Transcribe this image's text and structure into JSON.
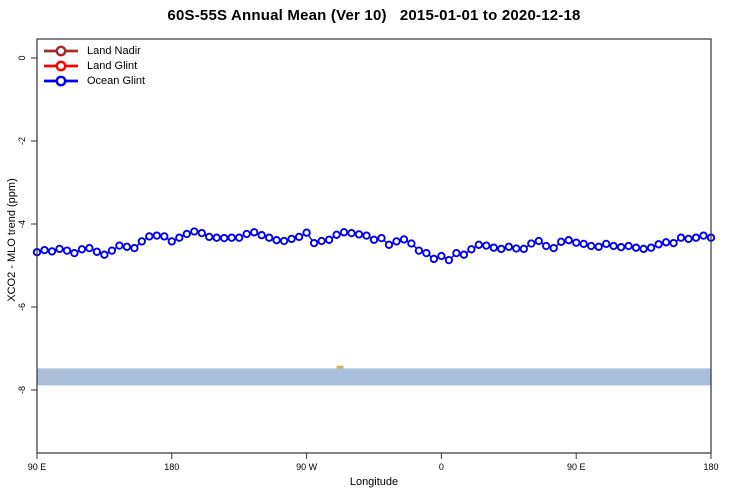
{
  "chart_data": {
    "type": "line",
    "title": "60S-55S Annual Mean (Ver 10)   2015-01-01 to 2020-12-18",
    "xlabel": "Longitude",
    "ylabel": "XCO2 - MLO trend (ppm)",
    "grid": false,
    "legend_position": "top-left",
    "x_axis": {
      "range": [
        90,
        540
      ],
      "ticks": [
        {
          "lon": 90,
          "label": "90 E"
        },
        {
          "lon": 180,
          "label": "180"
        },
        {
          "lon": 270,
          "label": "90 W"
        },
        {
          "lon": 360,
          "label": "0"
        },
        {
          "lon": 450,
          "label": "90 E"
        },
        {
          "lon": 540,
          "label": "180"
        }
      ]
    },
    "y_axis": {
      "range": [
        -9.5,
        0.5
      ],
      "ticks": [
        {
          "value": 0,
          "label": "0"
        },
        {
          "value": -2,
          "label": "-2"
        },
        {
          "value": -4,
          "label": "-4"
        },
        {
          "value": -6,
          "label": "-6"
        },
        {
          "value": -8,
          "label": "-8"
        }
      ]
    },
    "band": {
      "from": -7.89,
      "to": -7.48,
      "color": "#A9BED9"
    },
    "stray_mark": {
      "lon": 292,
      "value": -7.45,
      "color": "#D2B45A"
    },
    "series": [
      {
        "name": "Land Nadir",
        "color": "#A52A2A",
        "marker": "open-circle",
        "x": [],
        "values": []
      },
      {
        "name": "Land Glint",
        "color": "#FF0000",
        "marker": "open-circle",
        "x": [],
        "values": []
      },
      {
        "name": "Ocean Glint",
        "color": "#0000EE",
        "marker": "open-circle",
        "x": [
          90,
          95,
          100,
          105,
          110,
          115,
          120,
          125,
          130,
          135,
          140,
          145,
          150,
          155,
          160,
          165,
          170,
          175,
          180,
          185,
          190,
          195,
          200,
          205,
          210,
          215,
          220,
          225,
          230,
          235,
          240,
          245,
          250,
          255,
          260,
          265,
          270,
          275,
          280,
          285,
          290,
          295,
          300,
          305,
          310,
          315,
          320,
          325,
          330,
          335,
          340,
          345,
          350,
          355,
          360,
          365,
          370,
          375,
          380,
          385,
          390,
          395,
          400,
          405,
          410,
          415,
          420,
          425,
          430,
          435,
          440,
          445,
          450,
          455,
          460,
          465,
          470,
          475,
          480,
          485,
          490,
          495,
          500,
          505,
          510,
          515,
          520,
          525,
          530,
          535,
          540
        ],
        "values": [
          -4.68,
          -4.63,
          -4.66,
          -4.6,
          -4.64,
          -4.7,
          -4.61,
          -4.58,
          -4.67,
          -4.74,
          -4.64,
          -4.52,
          -4.55,
          -4.58,
          -4.42,
          -4.3,
          -4.28,
          -4.3,
          -4.42,
          -4.33,
          -4.24,
          -4.18,
          -4.22,
          -4.31,
          -4.33,
          -4.34,
          -4.33,
          -4.33,
          -4.24,
          -4.2,
          -4.27,
          -4.33,
          -4.39,
          -4.41,
          -4.36,
          -4.31,
          -4.21,
          -4.46,
          -4.41,
          -4.38,
          -4.26,
          -4.2,
          -4.22,
          -4.25,
          -4.28,
          -4.38,
          -4.34,
          -4.5,
          -4.42,
          -4.37,
          -4.47,
          -4.64,
          -4.7,
          -4.84,
          -4.77,
          -4.87,
          -4.7,
          -4.74,
          -4.61,
          -4.5,
          -4.52,
          -4.57,
          -4.6,
          -4.55,
          -4.59,
          -4.6,
          -4.47,
          -4.41,
          -4.53,
          -4.58,
          -4.43,
          -4.39,
          -4.45,
          -4.48,
          -4.53,
          -4.55,
          -4.48,
          -4.53,
          -4.56,
          -4.53,
          -4.57,
          -4.6,
          -4.57,
          -4.49,
          -4.44,
          -4.46,
          -4.33,
          -4.36,
          -4.33,
          -4.28,
          -4.33
        ]
      }
    ]
  }
}
